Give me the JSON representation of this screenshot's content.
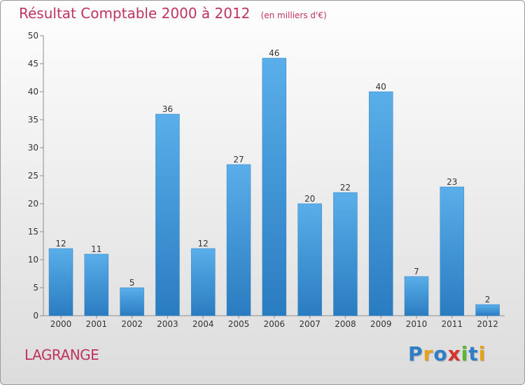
{
  "chart_data": {
    "type": "bar",
    "title": "Résultat Comptable 2000 à 2012",
    "unit_label": "(en milliers d'€)",
    "xlabel": "",
    "ylabel": "",
    "categories": [
      "2000",
      "2001",
      "2002",
      "2003",
      "2004",
      "2005",
      "2006",
      "2007",
      "2008",
      "2009",
      "2010",
      "2011",
      "2012"
    ],
    "values": [
      12,
      11,
      5,
      36,
      12,
      27,
      46,
      20,
      22,
      40,
      7,
      23,
      2
    ],
    "y_ticks": [
      0,
      5,
      10,
      15,
      20,
      25,
      30,
      35,
      40,
      45,
      50
    ],
    "ylim": [
      0,
      50
    ],
    "grid": false,
    "legend": "none",
    "bar_color": "#3d95d8"
  },
  "footer": {
    "commune": "LAGRANGE",
    "logo_letters": [
      "P",
      "r",
      "o",
      "x",
      "i",
      "t",
      "i"
    ]
  }
}
